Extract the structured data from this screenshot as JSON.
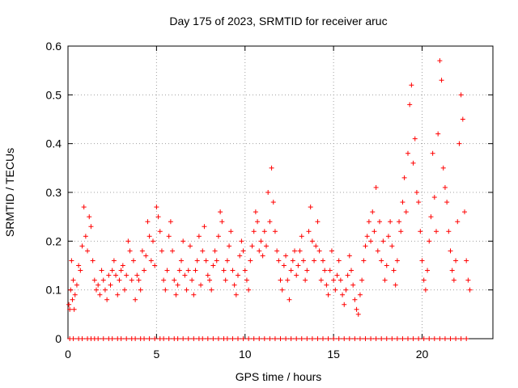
{
  "chart_data": {
    "type": "scatter",
    "title": "Day 175 of 2023, SRMTID for receiver aruc",
    "xlabel": "GPS time / hours",
    "ylabel": "SRMTID / TECUs",
    "xlim": [
      0,
      24
    ],
    "ylim": [
      0,
      0.6
    ],
    "xticks": [
      0,
      5,
      10,
      15,
      20
    ],
    "xtick_labels": [
      "0",
      "5",
      "10",
      "15",
      "20"
    ],
    "yticks": [
      0,
      0.1,
      0.2,
      0.3,
      0.4,
      0.5,
      0.6
    ],
    "ytick_labels": [
      "0",
      "0.1",
      "0.2",
      "0.3",
      "0.4",
      "0.5",
      "0.6"
    ],
    "grid": true,
    "marker": "+",
    "color": "#ff0000",
    "series": [
      {
        "name": "SRMTID",
        "x": [
          0.05,
          0.1,
          0.15,
          0.2,
          0.25,
          0.3,
          0.35,
          0.4,
          0.5,
          0.6,
          0.7,
          0.8,
          0.9,
          1.0,
          1.1,
          1.2,
          1.3,
          1.4,
          1.5,
          1.6,
          1.7,
          1.8,
          1.9,
          2.0,
          2.1,
          2.2,
          2.3,
          2.4,
          2.5,
          2.6,
          2.7,
          2.8,
          2.9,
          3.0,
          3.1,
          3.2,
          3.3,
          3.4,
          3.5,
          3.6,
          3.7,
          3.8,
          3.9,
          4.0,
          4.1,
          4.2,
          4.3,
          4.4,
          4.5,
          4.6,
          4.7,
          4.8,
          4.9,
          5.0,
          5.1,
          5.2,
          5.3,
          5.4,
          5.5,
          5.6,
          5.7,
          5.8,
          5.9,
          6.0,
          6.1,
          6.2,
          6.3,
          6.4,
          6.5,
          6.6,
          6.7,
          6.8,
          6.9,
          7.0,
          7.1,
          7.2,
          7.3,
          7.4,
          7.5,
          7.6,
          7.7,
          7.8,
          7.9,
          8.0,
          8.1,
          8.2,
          8.3,
          8.4,
          8.5,
          8.6,
          8.7,
          8.8,
          8.9,
          9.0,
          9.1,
          9.2,
          9.3,
          9.4,
          9.5,
          9.6,
          9.7,
          9.8,
          9.9,
          10.0,
          10.1,
          10.2,
          10.3,
          10.4,
          10.5,
          10.6,
          10.7,
          10.8,
          10.9,
          11.0,
          11.1,
          11.2,
          11.3,
          11.4,
          11.5,
          11.6,
          11.7,
          11.8,
          11.9,
          12.0,
          12.1,
          12.2,
          12.3,
          12.4,
          12.5,
          12.6,
          12.7,
          12.8,
          12.9,
          13.0,
          13.1,
          13.2,
          13.3,
          13.4,
          13.5,
          13.6,
          13.7,
          13.8,
          13.9,
          14.0,
          14.1,
          14.2,
          14.3,
          14.4,
          14.5,
          14.6,
          14.7,
          14.8,
          14.9,
          15.0,
          15.1,
          15.2,
          15.3,
          15.4,
          15.5,
          15.6,
          15.7,
          15.8,
          15.9,
          16.0,
          16.1,
          16.2,
          16.3,
          16.4,
          16.5,
          16.6,
          16.7,
          16.8,
          16.9,
          17.0,
          17.1,
          17.2,
          17.3,
          17.4,
          17.5,
          17.6,
          17.7,
          17.8,
          17.9,
          18.0,
          18.1,
          18.2,
          18.3,
          18.4,
          18.5,
          18.6,
          18.7,
          18.8,
          18.9,
          19.0,
          19.1,
          19.2,
          19.3,
          19.4,
          19.5,
          19.6,
          19.7,
          19.8,
          19.9,
          20.0,
          20.1,
          20.2,
          20.3,
          20.4,
          20.5,
          20.6,
          20.7,
          20.8,
          20.9,
          21.0,
          21.1,
          21.2,
          21.3,
          21.4,
          21.5,
          21.6,
          21.7,
          21.8,
          21.9,
          22.0,
          22.1,
          22.2,
          22.3,
          22.4,
          22.5,
          22.6,
          22.7
        ],
        "y": [
          0.07,
          0.06,
          0.1,
          0.16,
          0.08,
          0.12,
          0.06,
          0.09,
          0.11,
          0.15,
          0.14,
          0.19,
          0.27,
          0.21,
          0.18,
          0.25,
          0.23,
          0.16,
          0.12,
          0.1,
          0.11,
          0.09,
          0.14,
          0.12,
          0.1,
          0.08,
          0.13,
          0.11,
          0.14,
          0.16,
          0.13,
          0.09,
          0.12,
          0.14,
          0.15,
          0.1,
          0.13,
          0.2,
          0.18,
          0.12,
          0.16,
          0.08,
          0.13,
          0.12,
          0.1,
          0.18,
          0.14,
          0.17,
          0.24,
          0.21,
          0.16,
          0.2,
          0.15,
          0.27,
          0.25,
          0.22,
          0.18,
          0.12,
          0.1,
          0.14,
          0.21,
          0.24,
          0.18,
          0.12,
          0.09,
          0.11,
          0.14,
          0.16,
          0.2,
          0.13,
          0.1,
          0.14,
          0.19,
          0.12,
          0.09,
          0.14,
          0.16,
          0.21,
          0.11,
          0.18,
          0.23,
          0.16,
          0.13,
          0.12,
          0.1,
          0.15,
          0.18,
          0.16,
          0.21,
          0.26,
          0.24,
          0.14,
          0.12,
          0.16,
          0.19,
          0.22,
          0.14,
          0.11,
          0.09,
          0.13,
          0.17,
          0.2,
          0.18,
          0.14,
          0.12,
          0.1,
          0.16,
          0.19,
          0.22,
          0.26,
          0.24,
          0.18,
          0.2,
          0.17,
          0.22,
          0.19,
          0.3,
          0.24,
          0.35,
          0.28,
          0.22,
          0.18,
          0.16,
          0.12,
          0.1,
          0.15,
          0.17,
          0.12,
          0.08,
          0.14,
          0.16,
          0.18,
          0.13,
          0.15,
          0.18,
          0.21,
          0.16,
          0.12,
          0.14,
          0.22,
          0.27,
          0.2,
          0.16,
          0.19,
          0.24,
          0.18,
          0.12,
          0.16,
          0.14,
          0.11,
          0.09,
          0.14,
          0.18,
          0.12,
          0.1,
          0.13,
          0.16,
          0.12,
          0.09,
          0.07,
          0.1,
          0.13,
          0.17,
          0.14,
          0.11,
          0.08,
          0.06,
          0.05,
          0.09,
          0.12,
          0.16,
          0.19,
          0.21,
          0.24,
          0.2,
          0.26,
          0.22,
          0.31,
          0.18,
          0.24,
          0.16,
          0.2,
          0.12,
          0.15,
          0.21,
          0.24,
          0.19,
          0.14,
          0.11,
          0.16,
          0.24,
          0.22,
          0.28,
          0.33,
          0.26,
          0.38,
          0.48,
          0.52,
          0.36,
          0.41,
          0.3,
          0.28,
          0.22,
          0.16,
          0.12,
          0.1,
          0.14,
          0.2,
          0.25,
          0.38,
          0.29,
          0.22,
          0.42,
          0.57,
          0.53,
          0.35,
          0.31,
          0.28,
          0.22,
          0.18,
          0.14,
          0.12,
          0.16,
          0.24,
          0.4,
          0.5,
          0.45,
          0.26,
          0.16,
          0.12,
          0.1
        ]
      }
    ],
    "zero_markers_x": [
      0.1,
      0.3,
      0.6,
      0.8,
      1.1,
      1.3,
      1.5,
      1.7,
      2.0,
      2.3,
      2.5,
      2.8,
      3.0,
      3.3,
      3.6,
      3.8,
      4.1,
      4.3,
      4.6,
      4.9,
      5.2,
      5.4,
      5.7,
      6.0,
      6.2,
      6.5,
      6.8,
      7.1,
      7.4,
      7.6,
      7.9,
      8.2,
      8.5,
      8.8,
      9.0,
      9.3,
      9.6,
      9.9,
      10.2,
      10.5,
      10.8,
      11.1,
      11.4,
      11.7,
      12.0,
      12.3,
      12.6,
      12.9,
      13.2,
      13.5,
      13.8,
      14.1,
      14.4,
      14.7,
      15.0,
      15.3,
      15.6,
      15.9,
      16.2,
      16.5,
      16.8,
      17.1,
      17.4,
      17.7,
      18.0,
      18.3,
      18.6,
      18.9,
      19.2,
      19.5,
      19.8,
      20.1,
      20.4,
      20.7,
      21.0,
      21.3,
      21.6,
      21.9,
      22.2,
      22.5
    ]
  }
}
